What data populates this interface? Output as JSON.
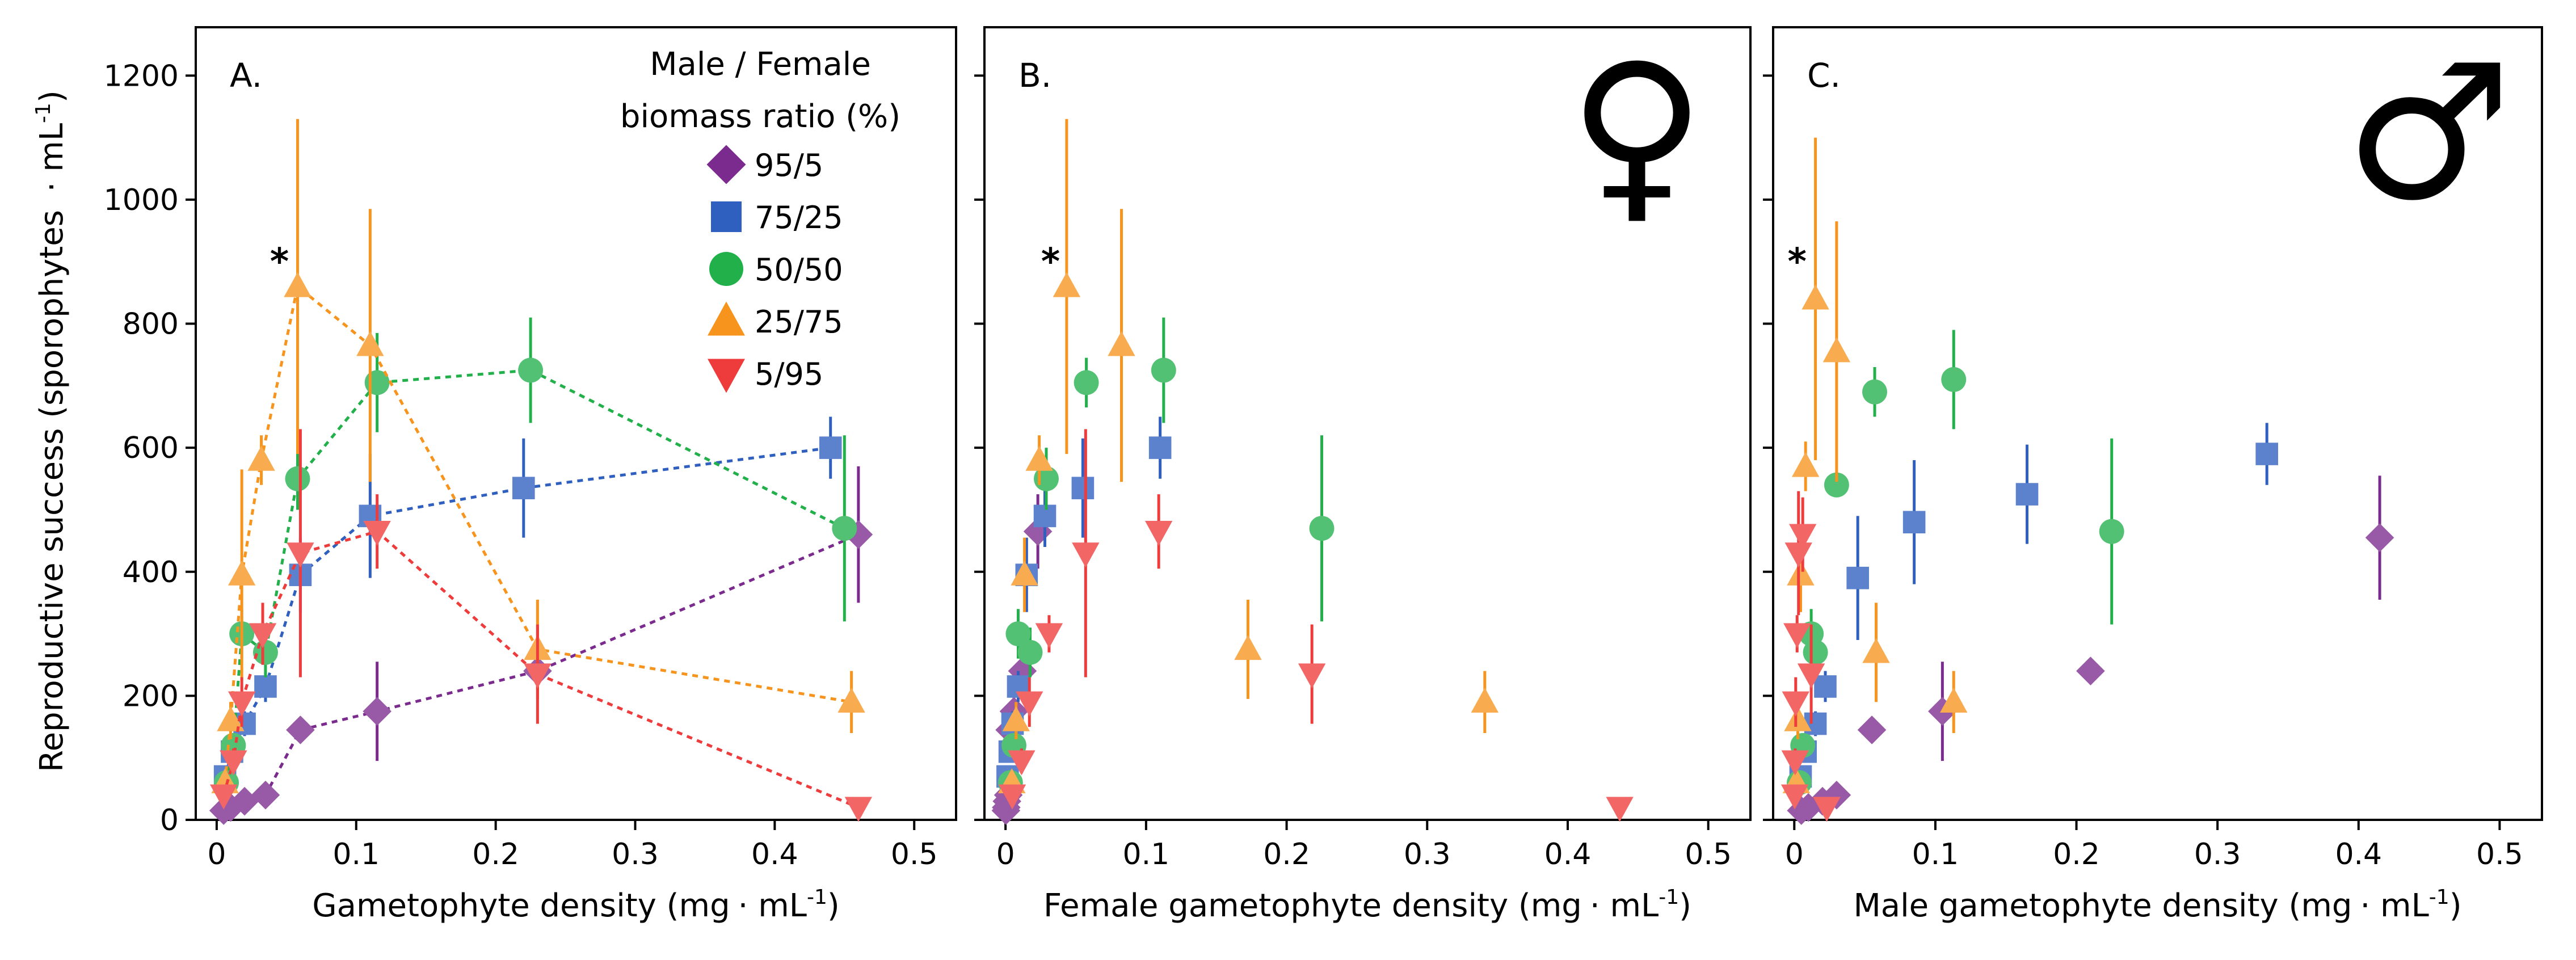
{
  "figure": {
    "ylabel_main": "Reproductive success (sporophytes",
    "ylabel_unit": "· mL",
    "ylabel_sup": "-1",
    "ylabel_close": ")"
  },
  "legend": {
    "title_line1": "Male / Female",
    "title_line2": "biomass ratio (%)",
    "entries": [
      {
        "label": "95/5",
        "color": "#7B2B8E",
        "marker": "diamond"
      },
      {
        "label": "75/25",
        "color": "#2F5FBF",
        "marker": "square"
      },
      {
        "label": "50/50",
        "color": "#22B04B",
        "marker": "circle"
      },
      {
        "label": "25/75",
        "color": "#F7941D",
        "marker": "triangle-up"
      },
      {
        "label": "5/95",
        "color": "#EE3B3B",
        "marker": "triangle-down"
      }
    ]
  },
  "chart_data": [
    {
      "type": "scatter",
      "panel": "A.",
      "xlabel_main": "Gametophyte density (mg",
      "xlabel_unit": "· mL",
      "xlabel_sup": "-1",
      "xlabel_close": ")",
      "xlim": [
        -0.015,
        0.53
      ],
      "ylim": [
        0,
        1200
      ],
      "xticks": [
        "0",
        "0.1",
        "0.2",
        "0.3",
        "0.4",
        "0.5"
      ],
      "yticks": [
        "0",
        "200",
        "400",
        "600",
        "800",
        "1000",
        "1200"
      ],
      "connected": true,
      "annotation": "*",
      "annotation_at": [
        0.045,
        880
      ],
      "series": [
        {
          "name": "95/5",
          "x": [
            0.005,
            0.01,
            0.02,
            0.035,
            0.06,
            0.115,
            0.23,
            0.46
          ],
          "y": [
            15,
            20,
            30,
            40,
            145,
            175,
            240,
            460
          ],
          "err": [
            0,
            0,
            0,
            0,
            0,
            80,
            30,
            110
          ]
        },
        {
          "name": "75/25",
          "x": [
            0.006,
            0.011,
            0.02,
            0.035,
            0.06,
            0.11,
            0.22,
            0.44
          ],
          "y": [
            70,
            110,
            155,
            215,
            395,
            490,
            535,
            600
          ],
          "err": [
            10,
            15,
            20,
            25,
            60,
            100,
            80,
            50
          ]
        },
        {
          "name": "50/50",
          "x": [
            0.007,
            0.012,
            0.018,
            0.035,
            0.058,
            0.115,
            0.225,
            0.45
          ],
          "y": [
            60,
            120,
            300,
            270,
            550,
            705,
            725,
            470
          ],
          "err": [
            10,
            20,
            40,
            40,
            50,
            80,
            85,
            150
          ]
        },
        {
          "name": "25/75",
          "x": [
            0.006,
            0.01,
            0.018,
            0.032,
            0.058,
            0.11,
            0.23,
            0.455
          ],
          "y": [
            60,
            160,
            395,
            580,
            860,
            765,
            275,
            190
          ],
          "err": [
            10,
            30,
            170,
            40,
            270,
            220,
            80,
            50
          ]
        },
        {
          "name": "5/95",
          "x": [
            0.005,
            0.012,
            0.018,
            0.033,
            0.06,
            0.115,
            0.23,
            0.46
          ],
          "y": [
            40,
            95,
            190,
            300,
            430,
            465,
            235,
            20
          ],
          "err": [
            10,
            20,
            40,
            50,
            200,
            60,
            80,
            10
          ]
        }
      ]
    },
    {
      "type": "scatter",
      "panel": "B.",
      "symbol": "♀",
      "xlabel_main": "Female gametophyte density (mg",
      "xlabel_unit": "· mL",
      "xlabel_sup": "-1",
      "xlabel_close": ")",
      "xlim": [
        -0.015,
        0.53
      ],
      "ylim": [
        0,
        1200
      ],
      "xticks": [
        "0",
        "0.1",
        "0.2",
        "0.3",
        "0.4",
        "0.5"
      ],
      "yticks": [],
      "connected": false,
      "annotation": "*",
      "annotation_at": [
        0.032,
        880
      ],
      "series": [
        {
          "name": "95/5",
          "x": [
            0.0003,
            0.0005,
            0.001,
            0.002,
            0.003,
            0.006,
            0.012,
            0.023
          ],
          "y": [
            15,
            20,
            30,
            40,
            145,
            175,
            240,
            465
          ],
          "err": [
            0,
            0,
            0,
            0,
            0,
            30,
            30,
            60
          ]
        },
        {
          "name": "75/25",
          "x": [
            0.0015,
            0.003,
            0.005,
            0.009,
            0.015,
            0.028,
            0.055,
            0.11
          ],
          "y": [
            70,
            110,
            155,
            215,
            395,
            490,
            535,
            600
          ],
          "err": [
            10,
            15,
            20,
            25,
            60,
            50,
            80,
            50
          ]
        },
        {
          "name": "50/50",
          "x": [
            0.0035,
            0.006,
            0.009,
            0.0175,
            0.029,
            0.0575,
            0.1125,
            0.225
          ],
          "y": [
            60,
            120,
            300,
            270,
            550,
            705,
            725,
            470
          ],
          "err": [
            10,
            20,
            40,
            40,
            50,
            40,
            85,
            150
          ]
        },
        {
          "name": "25/75",
          "x": [
            0.0045,
            0.0075,
            0.0135,
            0.024,
            0.0435,
            0.0825,
            0.1725,
            0.341
          ],
          "y": [
            60,
            160,
            395,
            580,
            860,
            765,
            275,
            190
          ],
          "err": [
            10,
            30,
            60,
            40,
            270,
            220,
            80,
            50
          ]
        },
        {
          "name": "5/95",
          "x": [
            0.0048,
            0.0114,
            0.017,
            0.031,
            0.057,
            0.109,
            0.218,
            0.437
          ],
          "y": [
            40,
            95,
            190,
            300,
            430,
            465,
            235,
            20
          ],
          "err": [
            10,
            20,
            40,
            30,
            200,
            60,
            80,
            10
          ]
        }
      ]
    },
    {
      "type": "scatter",
      "panel": "C.",
      "symbol": "♂",
      "xlabel_main": "Male gametophyte density (mg",
      "xlabel_unit": "· mL",
      "xlabel_sup": "-1",
      "xlabel_close": ")",
      "xlim": [
        -0.015,
        0.53
      ],
      "ylim": [
        0,
        1200
      ],
      "xticks": [
        "0",
        "0.1",
        "0.2",
        "0.3",
        "0.4",
        "0.5"
      ],
      "yticks": [],
      "connected": false,
      "annotation": "*",
      "annotation_at": [
        0.002,
        880
      ],
      "series": [
        {
          "name": "95/5",
          "x": [
            0.005,
            0.01,
            0.02,
            0.03,
            0.055,
            0.105,
            0.21,
            0.415
          ],
          "y": [
            15,
            20,
            30,
            40,
            145,
            175,
            240,
            455
          ],
          "err": [
            0,
            0,
            0,
            0,
            0,
            80,
            0,
            100
          ]
        },
        {
          "name": "75/25",
          "x": [
            0.0045,
            0.008,
            0.015,
            0.022,
            0.045,
            0.085,
            0.165,
            0.335
          ],
          "y": [
            70,
            110,
            155,
            215,
            390,
            480,
            525,
            590
          ],
          "err": [
            10,
            15,
            20,
            25,
            100,
            100,
            80,
            50
          ]
        },
        {
          "name": "50/50",
          "x": [
            0.0035,
            0.006,
            0.012,
            0.015,
            0.03,
            0.057,
            0.113,
            0.225
          ],
          "y": [
            60,
            120,
            300,
            270,
            540,
            690,
            710,
            465
          ],
          "err": [
            10,
            20,
            40,
            40,
            0,
            40,
            80,
            150
          ]
        },
        {
          "name": "25/75",
          "x": [
            0.0015,
            0.0025,
            0.0045,
            0.008,
            0.015,
            0.03,
            0.058,
            0.113
          ],
          "y": [
            60,
            160,
            395,
            570,
            840,
            755,
            270,
            190
          ],
          "err": [
            10,
            30,
            60,
            40,
            260,
            210,
            80,
            50
          ]
        },
        {
          "name": "5/95",
          "x": [
            0.0003,
            0.0006,
            0.001,
            0.002,
            0.003,
            0.006,
            0.012,
            0.023
          ],
          "y": [
            40,
            95,
            190,
            300,
            430,
            460,
            235,
            20
          ],
          "err": [
            10,
            20,
            40,
            30,
            100,
            60,
            80,
            10
          ]
        }
      ]
    }
  ]
}
